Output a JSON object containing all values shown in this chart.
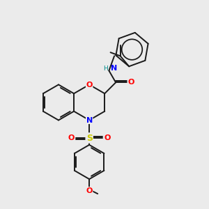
{
  "background_color": "#ebebeb",
  "bond_color": "#1a1a1a",
  "atom_colors": {
    "O": "#ff0000",
    "N": "#0000ff",
    "S": "#cccc00",
    "H": "#008b8b",
    "C": "#1a1a1a"
  },
  "figsize": [
    3.0,
    3.0
  ],
  "dpi": 100,
  "lw": 1.4
}
